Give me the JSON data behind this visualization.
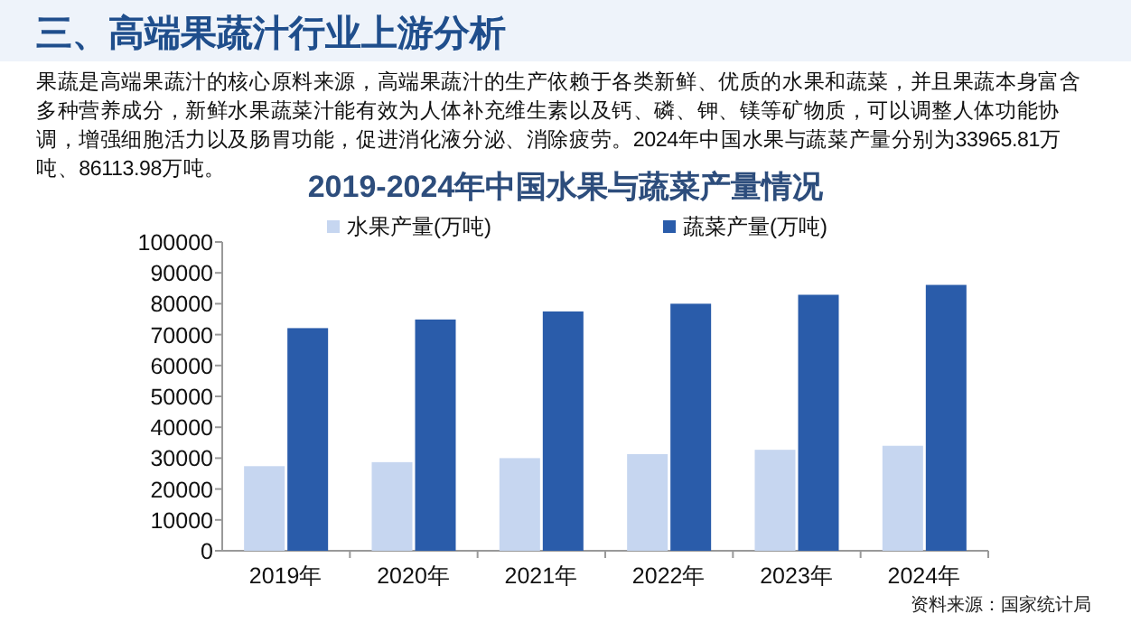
{
  "chart_data": {
    "type": "bar",
    "title": "2019-2024年中国水果与蔬菜产量情况",
    "annotations": [
      "三、高端果蔬汁行业上游分析",
      "果蔬是高端果蔬汁的核心原料来源，高端果蔬汁的生产依赖于各类新鲜、优质的水果和蔬菜，并且果蔬本身富含多种营养成分，新鲜水果蔬菜汁能有效为人体补充维生素以及钙、磷、钾、镁等矿物质，可以调整人体功能协调，增强细胞活力以及肠胃功能，促进消化液分泌、消除疲劳。2024年中国水果与蔬菜产量分别为33965.81万吨、86113.98万吨。",
      "资料来源：国家统计局"
    ],
    "categories": [
      "2019年",
      "2020年",
      "2021年",
      "2022年",
      "2023年",
      "2024年"
    ],
    "series": [
      {
        "name": "水果产量(万吨)",
        "color": "#c6d6f0",
        "values": [
          27400,
          28700,
          30000,
          31300,
          32700,
          34000
        ]
      },
      {
        "name": "蔬菜产量(万吨)",
        "color": "#2a5caa",
        "values": [
          72100,
          74900,
          77500,
          80000,
          82900,
          86100
        ]
      }
    ],
    "ylim": [
      0,
      100000
    ],
    "yticks": [
      0,
      10000,
      20000,
      30000,
      40000,
      50000,
      60000,
      70000,
      80000,
      90000,
      100000
    ],
    "legend": "top",
    "grid": false
  }
}
